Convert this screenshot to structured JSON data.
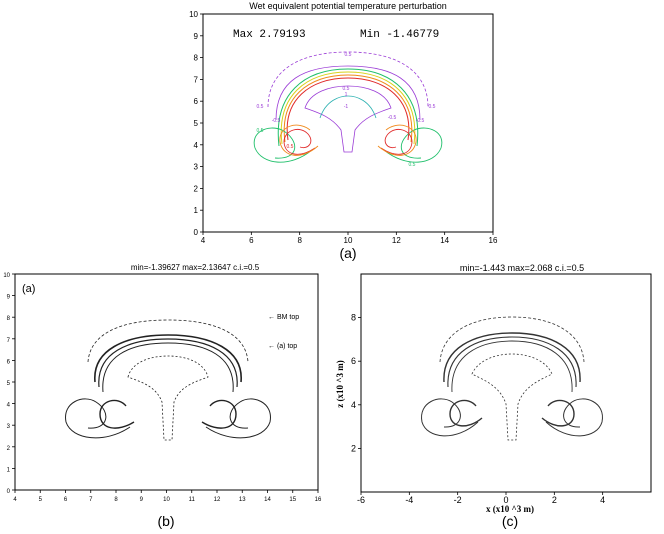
{
  "chart_data": [
    {
      "type": "contour",
      "panel_label": "(a)",
      "title": "Wet equivalent potential temperature perturbation",
      "max_text": "Max 2.79193",
      "min_text": "Min -1.46779",
      "xlim": [
        4,
        16
      ],
      "ylim": [
        0,
        10
      ],
      "x_ticks": [
        "4",
        "6",
        "8",
        "10",
        "12",
        "14",
        "16"
      ],
      "y_ticks": [
        "0",
        "1",
        "2",
        "3",
        "4",
        "5",
        "6",
        "7",
        "8",
        "9",
        "10"
      ],
      "contour_labels": [
        "0.5",
        "0.5",
        "0.5",
        "-0.5",
        "-0.5",
        "0.5",
        "0.5",
        "1",
        "-1",
        "-0.5",
        "0.5",
        "0.5"
      ],
      "colors": {
        "purple": "#9a3bd6",
        "green": "#1fbf6a",
        "orange": "#f08a1c",
        "red": "#e02a2a",
        "yellow": "#d8d21a",
        "teal": "#2ab0b0"
      }
    },
    {
      "type": "contour",
      "panel_label": "(b)",
      "inner_label": "(a)",
      "header": "min=-1.39627     max=2.13647     c.i.=0.5",
      "annotations": [
        "← BM top",
        "← (a) top"
      ],
      "xlim": [
        4,
        16
      ],
      "ylim": [
        0,
        10
      ],
      "x_ticks": [
        "4",
        "5",
        "6",
        "7",
        "8",
        "9",
        "10",
        "11",
        "12",
        "13",
        "14",
        "15",
        "16"
      ],
      "y_ticks": [
        "0",
        "1",
        "2",
        "3",
        "4",
        "5",
        "6",
        "7",
        "8",
        "9",
        "10"
      ]
    },
    {
      "type": "contour",
      "panel_label": "(c)",
      "header": "min=-1.443   max=2.068   c.i.=0.5",
      "xlabel": "x (x10 ^3 m)",
      "ylabel": "z (x10 ^3 m)",
      "xlim": [
        -6,
        6
      ],
      "ylim": [
        0,
        10
      ],
      "x_ticks": [
        "-6",
        "-4",
        "-2",
        "0",
        "2",
        "4"
      ],
      "y_ticks": [
        "2",
        "4",
        "6",
        "8"
      ]
    }
  ]
}
